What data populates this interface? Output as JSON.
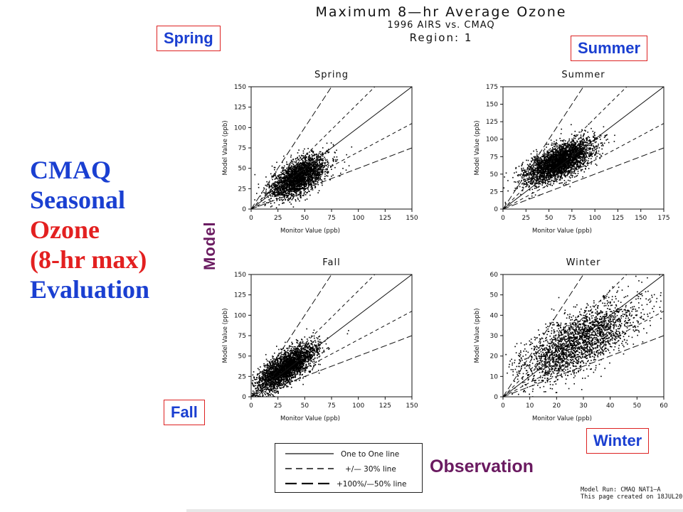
{
  "title": {
    "line1": "Maximum 8—hr Average Ozone",
    "line2": "1996 AIRS vs. CMAQ",
    "line3": "Region: 1"
  },
  "side_title": {
    "line1": "CMAQ",
    "line2": "Seasonal",
    "line3": "Ozone",
    "line4": "(8-hr max)",
    "line5": "Evaluation"
  },
  "season_labels": {
    "spring": "Spring",
    "summer": "Summer",
    "fall": "Fall",
    "winter": "Winter"
  },
  "axis_overlay": {
    "y": "Model",
    "x": "Observation"
  },
  "legend": {
    "items": [
      {
        "label": "One to One line",
        "style": "solid"
      },
      {
        "label": "+/— 30% line",
        "style": "dashed"
      },
      {
        "label": "+100%/—50% line",
        "style": "longdash"
      }
    ]
  },
  "footer": {
    "line1": "Model Run: CMAQ NAT1—A",
    "line2": "This page created on 18JUL20"
  },
  "colors": {
    "accent_blue": "#1a3fd1",
    "accent_red": "#e32020",
    "overlay_purple": "#6a1a60",
    "box_border": "#dd2222"
  },
  "chart_data": [
    {
      "type": "scatter",
      "title": "Spring",
      "xlabel": "Monitor Value (ppb)",
      "ylabel": "Model Value (ppb)",
      "xlim": [
        0,
        150
      ],
      "ylim": [
        0,
        150
      ],
      "xticks": [
        0,
        25,
        50,
        75,
        100,
        125,
        150
      ],
      "yticks": [
        0,
        25,
        50,
        75,
        100,
        125,
        150
      ],
      "reference_lines": [
        "one_to_one",
        "plus_minus_30pct",
        "plus100_minus50pct"
      ],
      "point_cloud": {
        "center": [
          44,
          40
        ],
        "spread": [
          13,
          13
        ],
        "correlation": 0.6,
        "count": 2600
      }
    },
    {
      "type": "scatter",
      "title": "Summer",
      "xlabel": "Monitor Value (ppb)",
      "ylabel": "Model Value (ppb)",
      "xlim": [
        0,
        175
      ],
      "ylim": [
        0,
        175
      ],
      "xticks": [
        0,
        25,
        50,
        75,
        100,
        125,
        150,
        175
      ],
      "yticks": [
        0,
        25,
        50,
        75,
        100,
        125,
        150,
        175
      ],
      "reference_lines": [
        "one_to_one",
        "plus_minus_30pct",
        "plus100_minus50pct"
      ],
      "point_cloud": {
        "center": [
          60,
          68
        ],
        "spread": [
          18,
          15
        ],
        "correlation": 0.65,
        "count": 3400
      }
    },
    {
      "type": "scatter",
      "title": "Fall",
      "xlabel": "Monitor Value (ppb)",
      "ylabel": "Model Value (ppb)",
      "xlim": [
        0,
        150
      ],
      "ylim": [
        0,
        150
      ],
      "xticks": [
        0,
        25,
        50,
        75,
        100,
        125,
        150
      ],
      "yticks": [
        0,
        25,
        50,
        75,
        100,
        125,
        150
      ],
      "reference_lines": [
        "one_to_one",
        "plus_minus_30pct",
        "plus100_minus50pct"
      ],
      "point_cloud": {
        "center": [
          32,
          36
        ],
        "spread": [
          14,
          15
        ],
        "correlation": 0.75,
        "count": 3000
      }
    },
    {
      "type": "scatter",
      "title": "Winter",
      "xlabel": "Monitor Value (ppb)",
      "ylabel": "Model Value (ppb)",
      "xlim": [
        0,
        60
      ],
      "ylim": [
        0,
        60
      ],
      "xticks": [
        0,
        10,
        20,
        30,
        40,
        50,
        60
      ],
      "yticks": [
        0,
        10,
        20,
        30,
        40,
        50,
        60
      ],
      "reference_lines": [
        "one_to_one",
        "plus_minus_30pct",
        "plus100_minus50pct"
      ],
      "point_cloud": {
        "center": [
          28,
          27
        ],
        "spread": [
          11,
          10
        ],
        "correlation": 0.7,
        "count": 2400
      }
    }
  ]
}
